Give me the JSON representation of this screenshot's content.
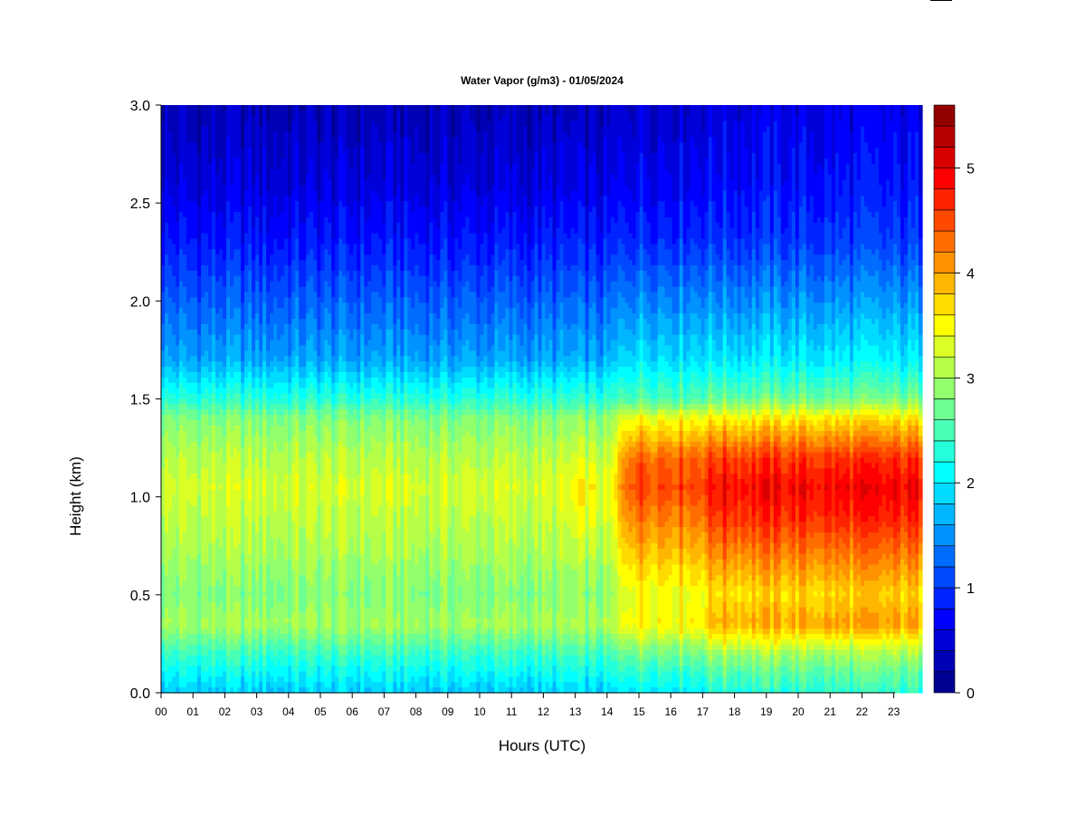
{
  "chart_data": {
    "type": "heatmap",
    "title": "Water Vapor (g/m3) - 01/05/2024",
    "xlabel": "Hours (UTC)",
    "ylabel": "Height (km)",
    "x_ticks": [
      "00",
      "01",
      "02",
      "03",
      "04",
      "05",
      "06",
      "07",
      "08",
      "09",
      "10",
      "11",
      "12",
      "13",
      "14",
      "15",
      "16",
      "17",
      "18",
      "19",
      "20",
      "21",
      "22",
      "23"
    ],
    "y_ticks": [
      "0.0",
      "0.5",
      "1.0",
      "1.5",
      "2.0",
      "2.5",
      "3.0"
    ],
    "xlim": [
      0,
      24
    ],
    "ylim": [
      0,
      3.0
    ],
    "colorbar": {
      "min": 0,
      "max": 5.6,
      "levels": 28,
      "ticks": [
        "0",
        "1",
        "2",
        "3",
        "4",
        "5"
      ],
      "palette": "jet",
      "colors": [
        "#00007f",
        "#0000ff",
        "#007fff",
        "#00ffff",
        "#7fff7f",
        "#ffff00",
        "#ff7f00",
        "#ff0000",
        "#7f0000"
      ]
    },
    "profiles": {
      "height_km": [
        0.0,
        0.1,
        0.2,
        0.35,
        0.5,
        0.7,
        0.9,
        1.05,
        1.2,
        1.4,
        1.5,
        1.7,
        2.0,
        2.3,
        2.6,
        3.0
      ],
      "early_hours_00_14": [
        1.8,
        2.1,
        2.4,
        3.0,
        2.8,
        3.0,
        3.15,
        3.25,
        3.1,
        2.8,
        2.3,
        1.6,
        1.2,
        0.8,
        0.5,
        0.3
      ],
      "late_hours_15_17": [
        2.1,
        2.4,
        2.8,
        3.6,
        3.5,
        3.9,
        4.3,
        4.6,
        4.4,
        3.5,
        2.6,
        2.0,
        1.5,
        1.0,
        0.7,
        0.5
      ],
      "late_hours_18_23": [
        2.3,
        2.6,
        3.0,
        4.0,
        3.7,
        4.2,
        4.7,
        4.9,
        4.6,
        3.6,
        2.7,
        2.0,
        1.5,
        1.0,
        0.75,
        0.55
      ]
    }
  }
}
